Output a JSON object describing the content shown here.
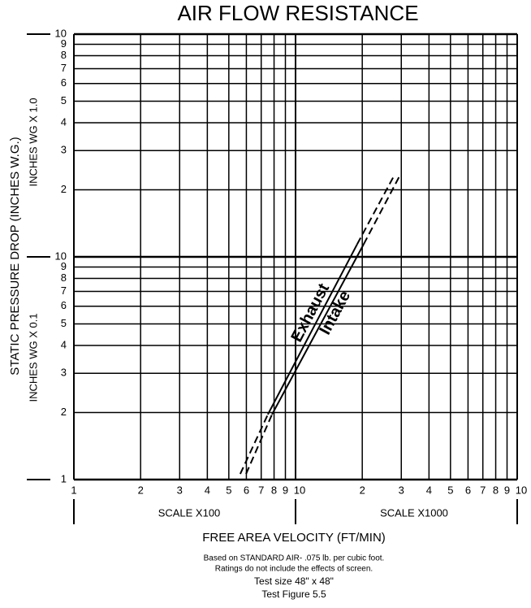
{
  "chart_data": {
    "type": "line",
    "title": "AIR FLOW RESISTANCE",
    "ylabel": "STATIC PRESSURE DROP (INCHES W.G.)",
    "ylabel_upper": "INCHES WG X 1.0",
    "ylabel_lower": "INCHES WG X 0.1",
    "xlabel": "FREE AREA VELOCITY (FT/MIN)",
    "xscale_left": "SCALE X100",
    "xscale_right": "SCALE X1000",
    "notes": [
      "Based on STANDARD AIR- .075 lb. per cubic foot.",
      "Ratings do not include the effects of screen.",
      "Test size 48\" x 48\"",
      "Test Figure 5.5"
    ],
    "xscale": "log",
    "yscale": "log",
    "grid": true,
    "xlim": [
      100,
      10000
    ],
    "ylim": [
      0.1,
      10
    ],
    "xticks": [
      {
        "value": 100,
        "label": "1"
      },
      {
        "value": 200,
        "label": "2"
      },
      {
        "value": 300,
        "label": "3"
      },
      {
        "value": 400,
        "label": "4"
      },
      {
        "value": 500,
        "label": "5"
      },
      {
        "value": 600,
        "label": "6"
      },
      {
        "value": 700,
        "label": "7"
      },
      {
        "value": 800,
        "label": "8"
      },
      {
        "value": 900,
        "label": "9"
      },
      {
        "value": 1000,
        "label": "10"
      },
      {
        "value": 2000,
        "label": "2"
      },
      {
        "value": 3000,
        "label": "3"
      },
      {
        "value": 4000,
        "label": "4"
      },
      {
        "value": 5000,
        "label": "5"
      },
      {
        "value": 6000,
        "label": "6"
      },
      {
        "value": 7000,
        "label": "7"
      },
      {
        "value": 8000,
        "label": "8"
      },
      {
        "value": 9000,
        "label": "9"
      },
      {
        "value": 10000,
        "label": "10"
      }
    ],
    "yticks": [
      {
        "value": 0.1,
        "label": "1"
      },
      {
        "value": 0.2,
        "label": "2"
      },
      {
        "value": 0.3,
        "label": "3"
      },
      {
        "value": 0.4,
        "label": "4"
      },
      {
        "value": 0.5,
        "label": "5"
      },
      {
        "value": 0.6,
        "label": "6"
      },
      {
        "value": 0.7,
        "label": "7"
      },
      {
        "value": 0.8,
        "label": "8"
      },
      {
        "value": 0.9,
        "label": "9"
      },
      {
        "value": 1,
        "label": "10"
      },
      2,
      3,
      4,
      5,
      6,
      7,
      8,
      9,
      10
    ],
    "series": [
      {
        "name": "Exhaust",
        "color": "#000000",
        "x": [
          563,
          750,
          1897,
          2800
        ],
        "values": [
          0.106,
          0.196,
          1.14,
          2.34
        ],
        "segment_styles": [
          "dashed",
          "solid",
          "dashed"
        ]
      },
      {
        "name": "Intake",
        "color": "#000000",
        "x": [
          598,
          783,
          2030,
          2970
        ],
        "values": [
          0.106,
          0.196,
          1.14,
          2.34
        ],
        "segment_styles": [
          "dashed",
          "solid",
          "dashed"
        ]
      }
    ]
  }
}
